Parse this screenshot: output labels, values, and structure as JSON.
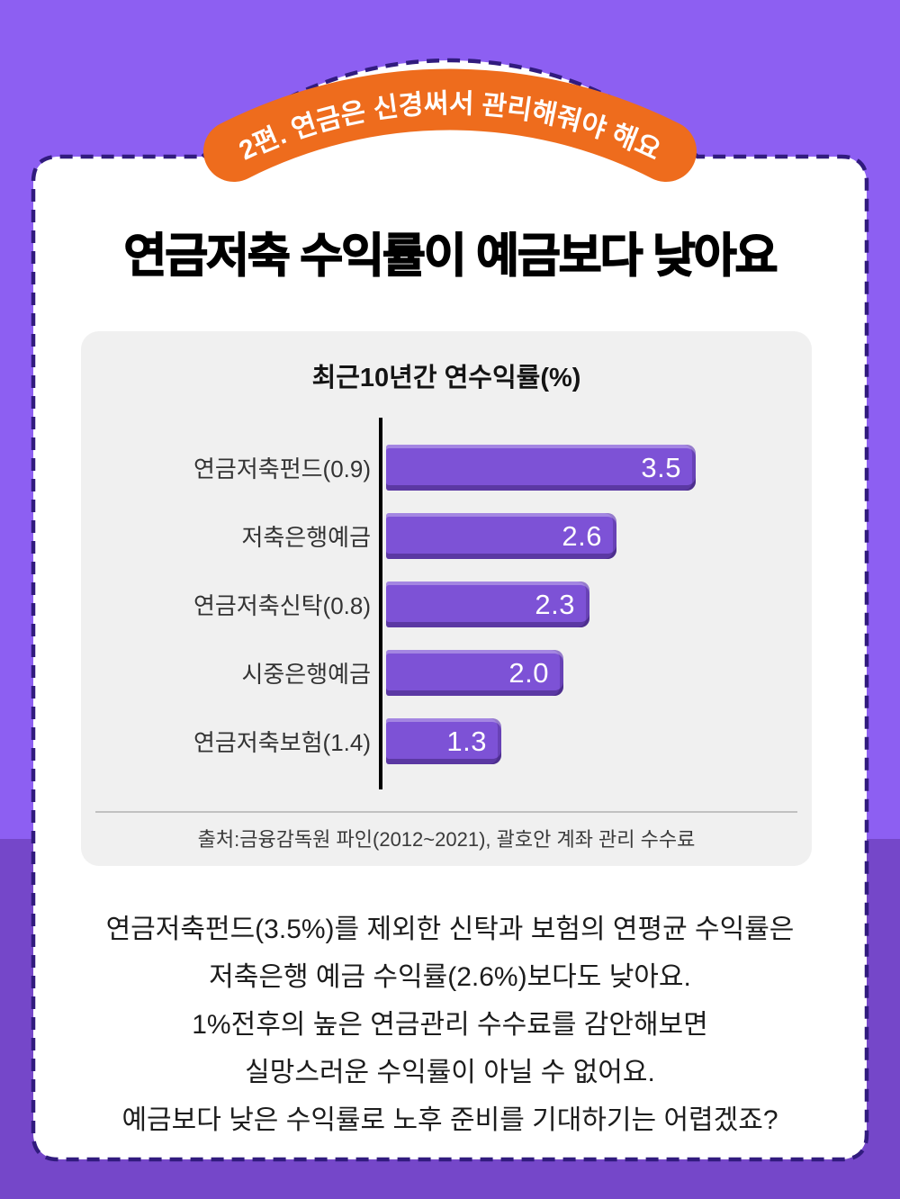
{
  "page": {
    "badge": {
      "label": "2편. 연금은 신경써서 관리해줘야 해요"
    },
    "title": "연금저축 수익률이 예금보다 낮아요",
    "body_lines": [
      "연금저축펀드(3.5%)를 제외한 신탁과 보험의 연평균 수익률은",
      "저축은행 예금 수익률(2.6%)보다도 낮아요.",
      "1%전후의 높은 연금관리 수수료를 감안해보면",
      "실망스러운 수익률이 아닐 수 없어요.",
      "예금보다 낮은 수익률로 노후 준비를 기대하기는 어렵겠죠?"
    ],
    "colors": {
      "background_top": "#8d5ff2",
      "background_bottom": "#7547c9",
      "card_border": "#311b7e",
      "badge_orange": "#ee6c1d",
      "chart_panel": "#f0f0f0",
      "bar_purple": "#7d52d6",
      "axis_black": "#000000",
      "value_text": "#ffffff"
    }
  },
  "chart_data": {
    "type": "bar",
    "orientation": "horizontal",
    "title": "최근10년간 연수익률(%)",
    "categories": [
      "연금저축펀드(0.9)",
      "저축은행예금",
      "연금저축신탁(0.8)",
      "시중은행예금",
      "연금저축보험(1.4)"
    ],
    "values": [
      3.5,
      2.6,
      2.3,
      2.0,
      1.3
    ],
    "value_labels": [
      "3.5",
      "2.6",
      "2.3",
      "2.0",
      "1.3"
    ],
    "xlim": [
      0,
      3.7
    ],
    "grid": false,
    "legend": "none",
    "bar_color": "#7d52d6",
    "source": "출처:금융감독원 파인(2012~2021), 괄호안 계좌 관리 수수료"
  }
}
